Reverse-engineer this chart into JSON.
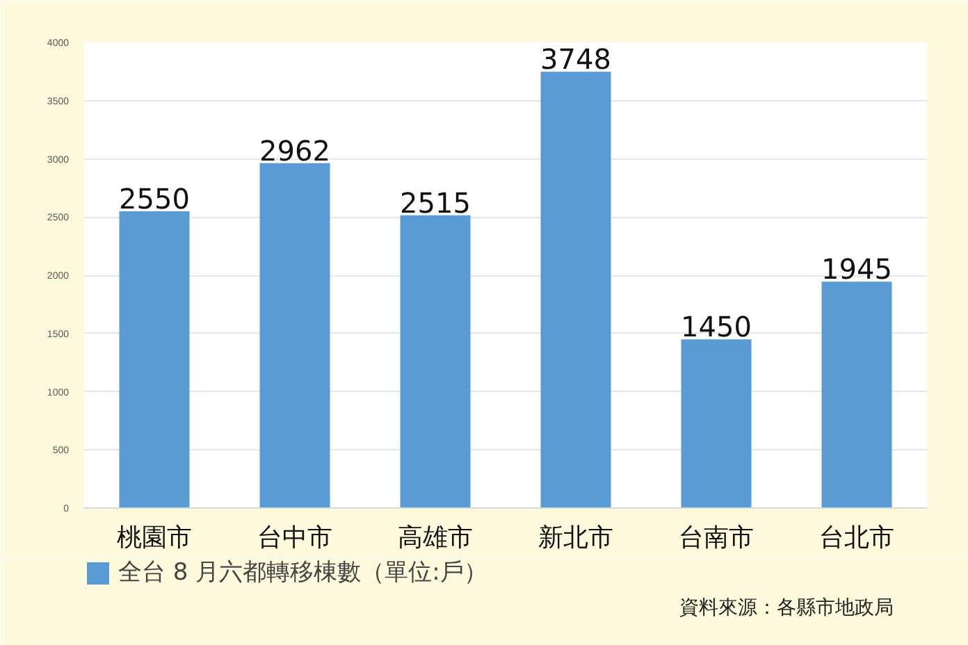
{
  "chart_data": {
    "type": "bar",
    "categories": [
      "桃園市",
      "台中市",
      "高雄市",
      "新北市",
      "台南市",
      "台北市"
    ],
    "series": [
      {
        "name": "全台 8 月六都轉移棟數（單位:戶）",
        "color": "#5b9bd5",
        "values": [
          2550,
          2962,
          2515,
          3748,
          1450,
          1945
        ]
      }
    ],
    "ylim": [
      0,
      4000
    ],
    "yticks": [
      0,
      500,
      1000,
      1500,
      2000,
      2500,
      3000,
      3500,
      4000
    ],
    "grid": "y",
    "legend": "bottom",
    "data_labels": true,
    "annotations": [
      "資料來源：各縣市地政局"
    ]
  }
}
